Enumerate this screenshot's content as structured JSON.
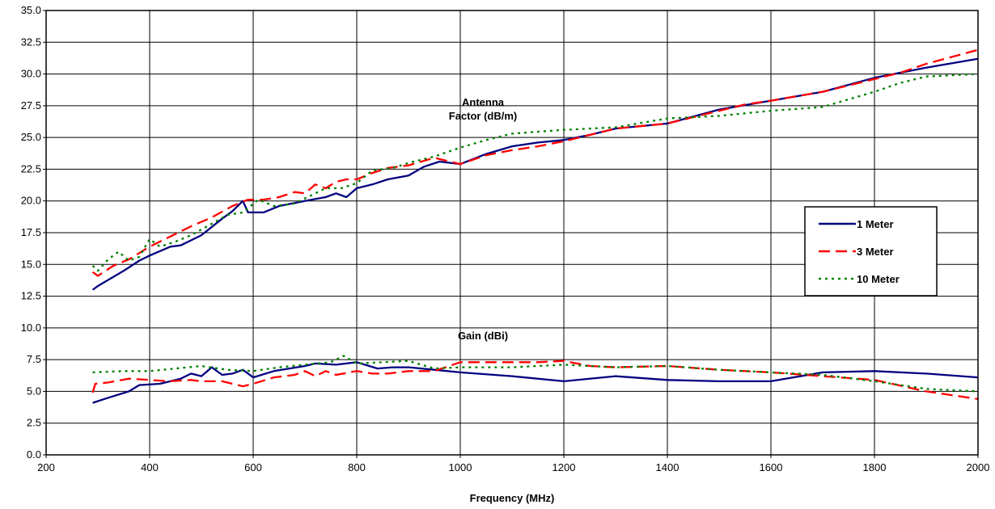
{
  "chart_data": {
    "type": "line",
    "title": "",
    "xlabel": "Frequency (MHz)",
    "ylabel": "",
    "xlim": [
      200,
      2000
    ],
    "ylim": [
      0,
      35
    ],
    "x_ticks": [
      200,
      400,
      600,
      800,
      1000,
      1200,
      1400,
      1600,
      1800,
      2000
    ],
    "y_ticks": [
      "0.0",
      "2.5",
      "5.0",
      "7.5",
      "10.0",
      "12.5",
      "15.0",
      "17.5",
      "20.0",
      "22.5",
      "25.0",
      "27.5",
      "30.0",
      "32.5",
      "35.0"
    ],
    "grid": true,
    "legend_position": "right",
    "annotations": [
      {
        "lines": [
          "Antenna",
          "Factor (dB/m)"
        ],
        "x": 1000,
        "y": 27.5
      },
      {
        "lines": [
          "Gain (dBi)"
        ],
        "x": 1000,
        "y": 9.1
      }
    ],
    "series": [
      {
        "name": "1 Meter",
        "group": "antenna_factor",
        "color": "#000080",
        "dash": "solid",
        "points": [
          [
            290,
            13.0
          ],
          [
            300,
            13.3
          ],
          [
            350,
            14.5
          ],
          [
            380,
            15.3
          ],
          [
            400,
            15.7
          ],
          [
            440,
            16.4
          ],
          [
            460,
            16.5
          ],
          [
            500,
            17.3
          ],
          [
            540,
            18.6
          ],
          [
            560,
            19.2
          ],
          [
            580,
            20.0
          ],
          [
            590,
            19.1
          ],
          [
            600,
            19.1
          ],
          [
            620,
            19.1
          ],
          [
            650,
            19.6
          ],
          [
            700,
            20.0
          ],
          [
            740,
            20.3
          ],
          [
            760,
            20.6
          ],
          [
            780,
            20.3
          ],
          [
            800,
            21.0
          ],
          [
            830,
            21.3
          ],
          [
            860,
            21.7
          ],
          [
            900,
            22.0
          ],
          [
            930,
            22.7
          ],
          [
            960,
            23.1
          ],
          [
            1000,
            22.9
          ],
          [
            1050,
            23.7
          ],
          [
            1100,
            24.3
          ],
          [
            1150,
            24.6
          ],
          [
            1200,
            24.8
          ],
          [
            1250,
            25.2
          ],
          [
            1300,
            25.7
          ],
          [
            1350,
            25.9
          ],
          [
            1400,
            26.1
          ],
          [
            1500,
            27.2
          ],
          [
            1600,
            27.9
          ],
          [
            1700,
            28.6
          ],
          [
            1800,
            29.7
          ],
          [
            1850,
            30.1
          ],
          [
            1900,
            30.5
          ],
          [
            2000,
            31.2
          ]
        ]
      },
      {
        "name": "3 Meter",
        "group": "antenna_factor",
        "color": "#ff0000",
        "dash": "long",
        "points": [
          [
            290,
            14.4
          ],
          [
            300,
            14.1
          ],
          [
            330,
            14.9
          ],
          [
            360,
            15.4
          ],
          [
            400,
            16.4
          ],
          [
            440,
            17.2
          ],
          [
            480,
            18.0
          ],
          [
            520,
            18.7
          ],
          [
            560,
            19.6
          ],
          [
            590,
            20.1
          ],
          [
            620,
            20.1
          ],
          [
            650,
            20.3
          ],
          [
            680,
            20.7
          ],
          [
            700,
            20.6
          ],
          [
            720,
            21.3
          ],
          [
            740,
            21.0
          ],
          [
            760,
            21.5
          ],
          [
            780,
            21.7
          ],
          [
            800,
            21.7
          ],
          [
            830,
            22.2
          ],
          [
            860,
            22.6
          ],
          [
            900,
            22.8
          ],
          [
            950,
            23.4
          ],
          [
            1000,
            22.9
          ],
          [
            1050,
            23.6
          ],
          [
            1100,
            24.0
          ],
          [
            1150,
            24.3
          ],
          [
            1200,
            24.7
          ],
          [
            1250,
            25.2
          ],
          [
            1300,
            25.7
          ],
          [
            1400,
            26.1
          ],
          [
            1500,
            27.1
          ],
          [
            1550,
            27.6
          ],
          [
            1600,
            27.9
          ],
          [
            1700,
            28.6
          ],
          [
            1800,
            29.6
          ],
          [
            1850,
            30.1
          ],
          [
            1900,
            30.8
          ],
          [
            2000,
            31.9
          ]
        ]
      },
      {
        "name": "10 Meter",
        "group": "antenna_factor",
        "color": "#008000",
        "dash": "dotted",
        "points": [
          [
            290,
            14.9
          ],
          [
            300,
            14.5
          ],
          [
            320,
            15.4
          ],
          [
            340,
            16.0
          ],
          [
            360,
            15.3
          ],
          [
            380,
            15.6
          ],
          [
            400,
            17.0
          ],
          [
            420,
            16.4
          ],
          [
            450,
            16.8
          ],
          [
            480,
            17.3
          ],
          [
            520,
            18.2
          ],
          [
            550,
            18.9
          ],
          [
            580,
            19.1
          ],
          [
            610,
            20.1
          ],
          [
            640,
            19.6
          ],
          [
            680,
            19.8
          ],
          [
            700,
            20.2
          ],
          [
            740,
            21.0
          ],
          [
            770,
            21.0
          ],
          [
            800,
            21.4
          ],
          [
            830,
            22.4
          ],
          [
            870,
            22.6
          ],
          [
            900,
            23.0
          ],
          [
            950,
            23.5
          ],
          [
            1000,
            24.2
          ],
          [
            1050,
            24.8
          ],
          [
            1100,
            25.3
          ],
          [
            1200,
            25.6
          ],
          [
            1300,
            25.8
          ],
          [
            1400,
            26.5
          ],
          [
            1500,
            26.7
          ],
          [
            1600,
            27.1
          ],
          [
            1700,
            27.4
          ],
          [
            1800,
            28.6
          ],
          [
            1850,
            29.3
          ],
          [
            1900,
            29.8
          ],
          [
            2000,
            30.0
          ]
        ]
      },
      {
        "name": "1 Meter",
        "group": "gain",
        "color": "#000080",
        "dash": "solid",
        "points": [
          [
            290,
            4.1
          ],
          [
            320,
            4.5
          ],
          [
            360,
            5.0
          ],
          [
            380,
            5.5
          ],
          [
            420,
            5.6
          ],
          [
            460,
            6.0
          ],
          [
            480,
            6.4
          ],
          [
            500,
            6.2
          ],
          [
            520,
            6.9
          ],
          [
            540,
            6.3
          ],
          [
            560,
            6.4
          ],
          [
            580,
            6.7
          ],
          [
            600,
            6.1
          ],
          [
            640,
            6.6
          ],
          [
            700,
            7.0
          ],
          [
            720,
            7.2
          ],
          [
            760,
            7.1
          ],
          [
            800,
            7.3
          ],
          [
            840,
            6.8
          ],
          [
            870,
            6.9
          ],
          [
            900,
            6.9
          ],
          [
            950,
            6.7
          ],
          [
            1000,
            6.5
          ],
          [
            1100,
            6.2
          ],
          [
            1200,
            5.8
          ],
          [
            1300,
            6.2
          ],
          [
            1400,
            5.9
          ],
          [
            1500,
            5.8
          ],
          [
            1600,
            5.8
          ],
          [
            1700,
            6.5
          ],
          [
            1800,
            6.6
          ],
          [
            1900,
            6.4
          ],
          [
            2000,
            6.1
          ]
        ]
      },
      {
        "name": "3 Meter",
        "group": "gain",
        "color": "#ff0000",
        "dash": "long",
        "points": [
          [
            290,
            4.9
          ],
          [
            295,
            5.6
          ],
          [
            320,
            5.7
          ],
          [
            360,
            6.0
          ],
          [
            400,
            5.9
          ],
          [
            440,
            5.8
          ],
          [
            480,
            5.9
          ],
          [
            500,
            5.8
          ],
          [
            540,
            5.8
          ],
          [
            580,
            5.4
          ],
          [
            600,
            5.6
          ],
          [
            640,
            6.1
          ],
          [
            680,
            6.3
          ],
          [
            700,
            6.6
          ],
          [
            720,
            6.2
          ],
          [
            740,
            6.6
          ],
          [
            760,
            6.3
          ],
          [
            800,
            6.6
          ],
          [
            830,
            6.4
          ],
          [
            860,
            6.4
          ],
          [
            900,
            6.6
          ],
          [
            950,
            6.6
          ],
          [
            1000,
            7.3
          ],
          [
            1050,
            7.3
          ],
          [
            1100,
            7.3
          ],
          [
            1150,
            7.3
          ],
          [
            1200,
            7.4
          ],
          [
            1250,
            7.0
          ],
          [
            1300,
            6.9
          ],
          [
            1400,
            7.0
          ],
          [
            1500,
            6.7
          ],
          [
            1600,
            6.5
          ],
          [
            1700,
            6.2
          ],
          [
            1800,
            5.9
          ],
          [
            1900,
            5.0
          ],
          [
            2000,
            4.4
          ]
        ]
      },
      {
        "name": "10 Meter",
        "group": "gain",
        "color": "#008000",
        "dash": "dotted",
        "points": [
          [
            290,
            6.5
          ],
          [
            350,
            6.6
          ],
          [
            400,
            6.6
          ],
          [
            450,
            6.8
          ],
          [
            500,
            7.0
          ],
          [
            550,
            6.7
          ],
          [
            600,
            6.6
          ],
          [
            650,
            6.9
          ],
          [
            700,
            7.1
          ],
          [
            750,
            7.3
          ],
          [
            775,
            7.8
          ],
          [
            800,
            7.2
          ],
          [
            850,
            7.3
          ],
          [
            900,
            7.4
          ],
          [
            950,
            6.8
          ],
          [
            1000,
            6.9
          ],
          [
            1100,
            6.9
          ],
          [
            1200,
            7.1
          ],
          [
            1300,
            6.9
          ],
          [
            1400,
            7.0
          ],
          [
            1500,
            6.7
          ],
          [
            1600,
            6.5
          ],
          [
            1700,
            6.3
          ],
          [
            1800,
            5.8
          ],
          [
            1900,
            5.2
          ],
          [
            2000,
            5.0
          ]
        ]
      }
    ]
  }
}
